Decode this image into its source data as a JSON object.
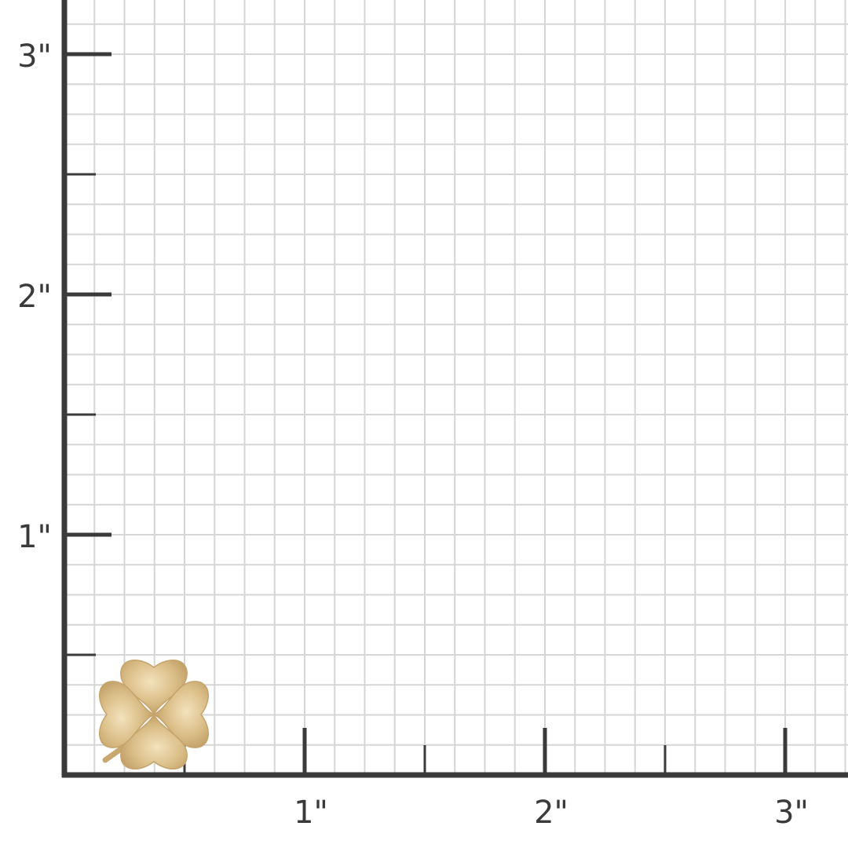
{
  "chart_data": {
    "type": "other",
    "unit": "inch",
    "x_tick_labels": [
      "1\"",
      "2\"",
      "3\""
    ],
    "y_tick_labels": [
      "1\"",
      "2\"",
      "3\""
    ],
    "grid_step": 0.125,
    "minor_tick_step": 0.5,
    "grid": true
  },
  "product": {
    "icon": "four-leaf-clover-icon",
    "width_in": 0.47,
    "height_in": 0.47
  },
  "colors": {
    "axis": "#3a3a3a",
    "grid": "#d6d6d6",
    "gold": "#d9bb82"
  }
}
